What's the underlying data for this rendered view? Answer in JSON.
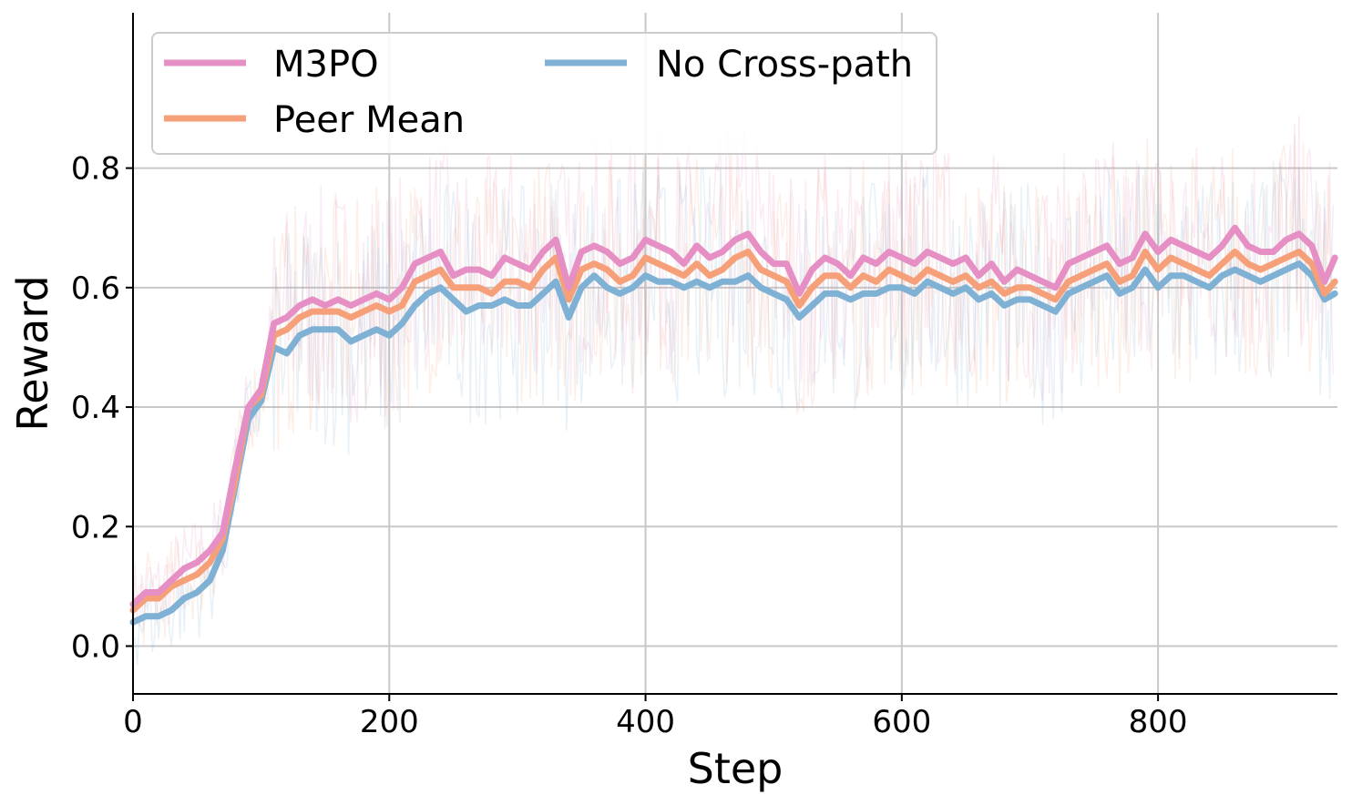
{
  "chart_data": {
    "type": "line",
    "title": "",
    "xlabel": "Step",
    "ylabel": "Reward",
    "xlim": [
      0,
      940
    ],
    "ylim": [
      -0.08,
      1.06
    ],
    "xticks": [
      0,
      200,
      400,
      600,
      800
    ],
    "yticks": [
      0.0,
      0.2,
      0.4,
      0.6,
      0.8
    ],
    "xtick_labels": [
      "0",
      "200",
      "400",
      "600",
      "800"
    ],
    "ytick_labels": [
      "0.0",
      "0.2",
      "0.4",
      "0.6",
      "0.8"
    ],
    "grid": true,
    "legend_placement": "top-left",
    "x": [
      0,
      10,
      20,
      30,
      40,
      50,
      60,
      70,
      80,
      90,
      100,
      110,
      120,
      130,
      140,
      150,
      160,
      170,
      180,
      190,
      200,
      210,
      220,
      230,
      240,
      250,
      260,
      270,
      280,
      290,
      300,
      310,
      320,
      330,
      340,
      350,
      360,
      370,
      380,
      390,
      400,
      410,
      420,
      430,
      440,
      450,
      460,
      470,
      480,
      490,
      500,
      510,
      520,
      530,
      540,
      550,
      560,
      570,
      580,
      590,
      600,
      610,
      620,
      630,
      640,
      650,
      660,
      670,
      680,
      690,
      700,
      710,
      720,
      730,
      740,
      750,
      760,
      770,
      780,
      790,
      800,
      810,
      820,
      830,
      840,
      850,
      860,
      870,
      880,
      890,
      900,
      910,
      920,
      930,
      938
    ],
    "series": [
      {
        "name": "M3PO",
        "color": "#e58fc4",
        "values": [
          0.07,
          0.09,
          0.09,
          0.11,
          0.13,
          0.14,
          0.16,
          0.19,
          0.3,
          0.4,
          0.43,
          0.54,
          0.55,
          0.57,
          0.58,
          0.57,
          0.58,
          0.57,
          0.58,
          0.59,
          0.58,
          0.6,
          0.64,
          0.65,
          0.66,
          0.62,
          0.63,
          0.63,
          0.62,
          0.65,
          0.64,
          0.63,
          0.66,
          0.68,
          0.6,
          0.66,
          0.67,
          0.66,
          0.64,
          0.65,
          0.68,
          0.67,
          0.66,
          0.64,
          0.67,
          0.65,
          0.66,
          0.68,
          0.69,
          0.66,
          0.64,
          0.64,
          0.59,
          0.63,
          0.65,
          0.64,
          0.62,
          0.65,
          0.64,
          0.66,
          0.65,
          0.64,
          0.66,
          0.65,
          0.64,
          0.65,
          0.62,
          0.64,
          0.61,
          0.63,
          0.62,
          0.61,
          0.6,
          0.64,
          0.65,
          0.66,
          0.67,
          0.64,
          0.65,
          0.69,
          0.66,
          0.68,
          0.67,
          0.66,
          0.65,
          0.67,
          0.7,
          0.67,
          0.66,
          0.66,
          0.68,
          0.69,
          0.67,
          0.61,
          0.65
        ]
      },
      {
        "name": "Peer Mean",
        "color": "#f6a07a",
        "values": [
          0.06,
          0.08,
          0.08,
          0.1,
          0.11,
          0.12,
          0.14,
          0.18,
          0.28,
          0.4,
          0.42,
          0.52,
          0.53,
          0.55,
          0.56,
          0.56,
          0.56,
          0.55,
          0.56,
          0.57,
          0.56,
          0.57,
          0.61,
          0.62,
          0.63,
          0.6,
          0.6,
          0.6,
          0.59,
          0.61,
          0.61,
          0.6,
          0.63,
          0.65,
          0.58,
          0.63,
          0.64,
          0.63,
          0.61,
          0.62,
          0.65,
          0.64,
          0.63,
          0.62,
          0.64,
          0.62,
          0.63,
          0.65,
          0.66,
          0.63,
          0.62,
          0.61,
          0.57,
          0.6,
          0.62,
          0.62,
          0.6,
          0.62,
          0.61,
          0.63,
          0.62,
          0.61,
          0.63,
          0.62,
          0.61,
          0.62,
          0.6,
          0.61,
          0.59,
          0.6,
          0.6,
          0.59,
          0.58,
          0.61,
          0.62,
          0.63,
          0.64,
          0.61,
          0.62,
          0.66,
          0.63,
          0.65,
          0.64,
          0.63,
          0.62,
          0.64,
          0.66,
          0.64,
          0.63,
          0.64,
          0.65,
          0.66,
          0.64,
          0.59,
          0.61
        ]
      },
      {
        "name": "No Cross-path",
        "color": "#7fb1d4",
        "values": [
          0.04,
          0.05,
          0.05,
          0.06,
          0.08,
          0.09,
          0.11,
          0.16,
          0.27,
          0.38,
          0.41,
          0.5,
          0.49,
          0.52,
          0.53,
          0.53,
          0.53,
          0.51,
          0.52,
          0.53,
          0.52,
          0.54,
          0.57,
          0.59,
          0.6,
          0.58,
          0.56,
          0.57,
          0.57,
          0.58,
          0.57,
          0.57,
          0.59,
          0.61,
          0.55,
          0.6,
          0.62,
          0.6,
          0.59,
          0.6,
          0.62,
          0.61,
          0.61,
          0.6,
          0.61,
          0.6,
          0.61,
          0.61,
          0.62,
          0.6,
          0.59,
          0.58,
          0.55,
          0.57,
          0.59,
          0.59,
          0.58,
          0.59,
          0.59,
          0.6,
          0.6,
          0.59,
          0.61,
          0.6,
          0.59,
          0.6,
          0.58,
          0.59,
          0.57,
          0.58,
          0.58,
          0.57,
          0.56,
          0.59,
          0.6,
          0.61,
          0.62,
          0.59,
          0.6,
          0.63,
          0.6,
          0.62,
          0.62,
          0.61,
          0.6,
          0.62,
          0.63,
          0.62,
          0.61,
          0.62,
          0.63,
          0.64,
          0.62,
          0.58,
          0.59
        ]
      }
    ]
  }
}
